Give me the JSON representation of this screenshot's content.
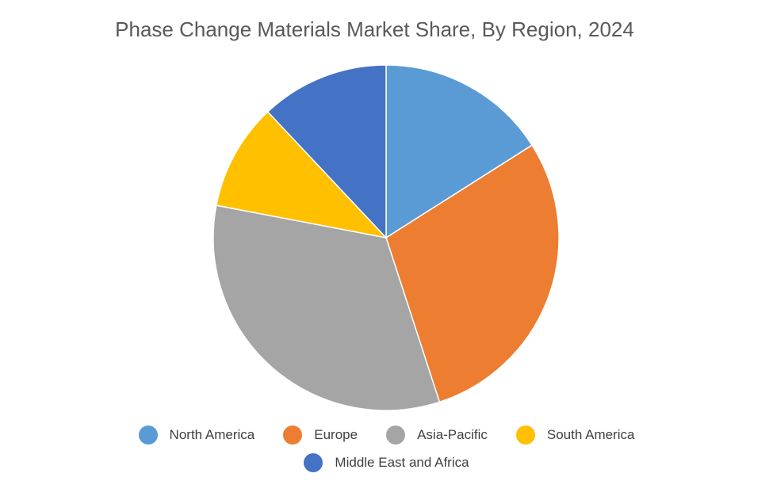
{
  "chart_data": {
    "type": "pie",
    "title": "Phase Change Materials Market Share, By Region, 2024",
    "categories": [
      "North America",
      "Europe",
      "Asia-Pacific",
      "South America",
      "Middle East and Africa"
    ],
    "values": [
      16,
      29,
      33,
      10,
      12
    ],
    "unit": "%",
    "colors": [
      "#5B9BD5",
      "#ED7D31",
      "#A5A5A5",
      "#FFC000",
      "#4472C4"
    ],
    "legend_position": "bottom"
  }
}
